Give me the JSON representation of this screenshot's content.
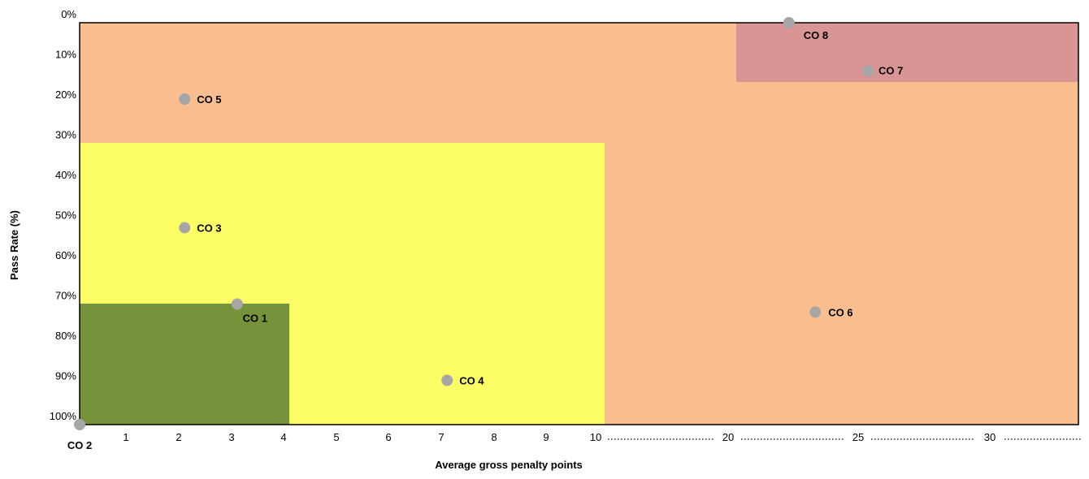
{
  "chart_data": {
    "type": "scatter",
    "xlabel": "Average gross penalty points",
    "ylabel": "Pass Rate (%)",
    "x_axis_scale": "piecewise: linear 0-10, then compressed 10-30 in steps of 5",
    "x_ticks": [
      "1",
      "2",
      "3",
      "4",
      "5",
      "6",
      "7",
      "8",
      "9",
      "10",
      "20",
      "25",
      "30"
    ],
    "y_ticks": [
      "0%",
      "10%",
      "20%",
      "30%",
      "40%",
      "50%",
      "60%",
      "70%",
      "80%",
      "90%",
      "100%"
    ],
    "ylim": [
      0,
      100
    ],
    "y_inverted": true,
    "dot_leaders": "dotted leaders between the compressed x ticks 10, 20, 25, 30 and after 30",
    "regions": [
      {
        "name": "orange-zone",
        "x": [
          0,
          33
        ],
        "y": [
          0,
          100
        ],
        "color": "#F8BE8F"
      },
      {
        "name": "yellow-zone",
        "x": [
          0,
          10
        ],
        "y": [
          30,
          100
        ],
        "color": "#FDFD66"
      },
      {
        "name": "green-zone",
        "x": [
          0,
          4
        ],
        "y": [
          70,
          100
        ],
        "color": "#76933C"
      },
      {
        "name": "pink-zone",
        "x": [
          20,
          33
        ],
        "y": [
          0,
          15
        ],
        "color": "#D99594"
      }
    ],
    "points": [
      {
        "label": "CO 1",
        "x": 3,
        "y": 70
      },
      {
        "label": "CO 2",
        "x": 0,
        "y": 100
      },
      {
        "label": "CO 3",
        "x": 2,
        "y": 51
      },
      {
        "label": "CO 4",
        "x": 7,
        "y": 89
      },
      {
        "label": "CO 5",
        "x": 2,
        "y": 19
      },
      {
        "label": "CO 6",
        "x": 23,
        "y": 72
      },
      {
        "label": "CO 7",
        "x": 25,
        "y": 12
      },
      {
        "label": "CO 8",
        "x": 22,
        "y": 0
      }
    ],
    "point_color": "#A6A6A6"
  }
}
